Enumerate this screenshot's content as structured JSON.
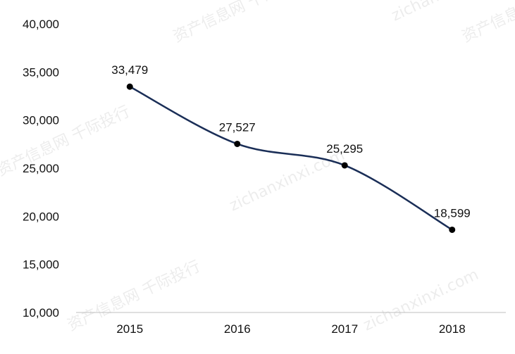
{
  "chart_data": {
    "type": "line",
    "title": "",
    "xlabel": "",
    "ylabel": "",
    "categories": [
      "2015",
      "2016",
      "2017",
      "2018"
    ],
    "series": [
      {
        "values": [
          33479,
          27527,
          25295,
          18599
        ]
      }
    ],
    "data_labels": [
      "33,479",
      "27,527",
      "25,295",
      "18,599"
    ],
    "y_ticks": [
      10000,
      15000,
      20000,
      25000,
      30000,
      35000,
      40000
    ],
    "y_tick_labels": [
      "10,000",
      "15,000",
      "20,000",
      "25,000",
      "30,000",
      "35,000",
      "40,000"
    ],
    "ylim": [
      10000,
      40000
    ],
    "grid": false,
    "smooth": true,
    "line_color": "#1a2e57",
    "marker_color": "#000000",
    "axis_color": "#bfbfbf"
  },
  "watermarks": [
    "资产信息网 千际投行",
    "zichanxinxi.com"
  ]
}
